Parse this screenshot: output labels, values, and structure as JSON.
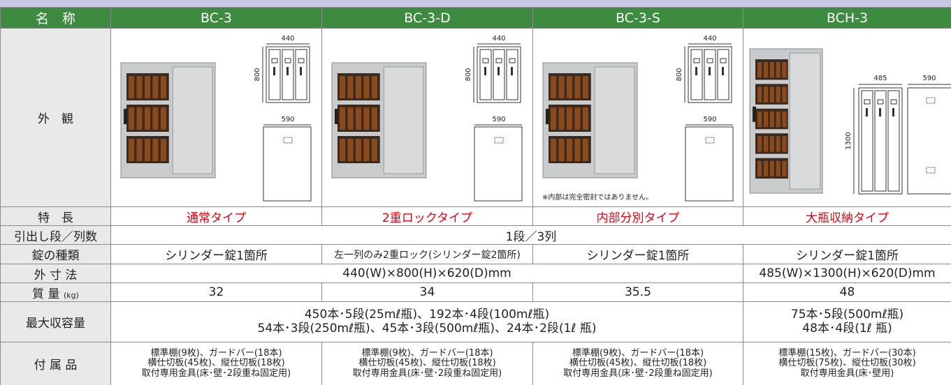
{
  "header": {
    "label": "名　称",
    "models": [
      "BC-3",
      "BC-3-D",
      "BC-3-S",
      "BCH-3"
    ]
  },
  "appearance": {
    "label": "外　観",
    "dimensions": [
      [
        "440",
        "800",
        "590"
      ],
      [
        "440",
        "800",
        "590"
      ],
      [
        "440",
        "800",
        "590"
      ],
      [
        "485",
        "590",
        "1300"
      ]
    ],
    "note": "※内部は完全密封ではありません。"
  },
  "features": {
    "label": "特　長",
    "cells": [
      "通常タイプ",
      "2重ロックタイプ",
      "内部分別タイプ",
      "大瓶収納タイプ"
    ]
  },
  "drawers": {
    "label": "引出し段／列数",
    "cells": [
      "1段／3列"
    ]
  },
  "lock": {
    "label": "錠の種類",
    "cells": [
      "シリンダー錠1箇所",
      "左一列のみ2重ロック(シリンダー錠2箇所)",
      "シリンダー錠1箇所",
      "シリンダー錠1箇所"
    ]
  },
  "size": {
    "label": "外 寸 法",
    "cells": [
      "440(W)×800(H)×620(D)mm",
      "485(W)×1300(H)×620(D)mm"
    ]
  },
  "mass": {
    "label": "質 量",
    "unit": "(kg)",
    "cells": [
      "32",
      "34",
      "35.5",
      "48"
    ]
  },
  "capacity": {
    "label": "最大収容量",
    "cells": [
      [
        "450本･5段(25mℓ瓶)、192本･4段(100mℓ瓶)",
        "54本･3段(250mℓ瓶)、45本･3段(500mℓ瓶)、24本･2段(1ℓ 瓶)"
      ],
      [
        "75本･5段(500mℓ瓶)",
        "48本･4段(1ℓ 瓶)"
      ]
    ]
  },
  "accessories": {
    "label": "付 属 品",
    "cells": [
      [
        "標準棚(9枚)、ガードバー(18本)",
        "横仕切板(45枚)、縦仕切板(18枚)",
        "取付専用金具(床･壁･2段重ね固定用)"
      ],
      [
        "標準棚(9枚)、ガードバー(18本)",
        "横仕切板(45枚)、縦仕切板(18枚)",
        "取付専用金具(床･壁･2段重ね固定用)"
      ],
      [
        "標準棚(9枚)、ガードバー(18本)",
        "横仕切板(45枚)、縦仕切板(18枚)",
        "取付専用金具(床･壁･2段重ね固定用)"
      ],
      [
        "標準棚(15枚)、ガードバー(30本)",
        "横仕切板(75枚)、縦仕切板(30枚)",
        "取付専用金具(床･壁用)"
      ]
    ]
  }
}
